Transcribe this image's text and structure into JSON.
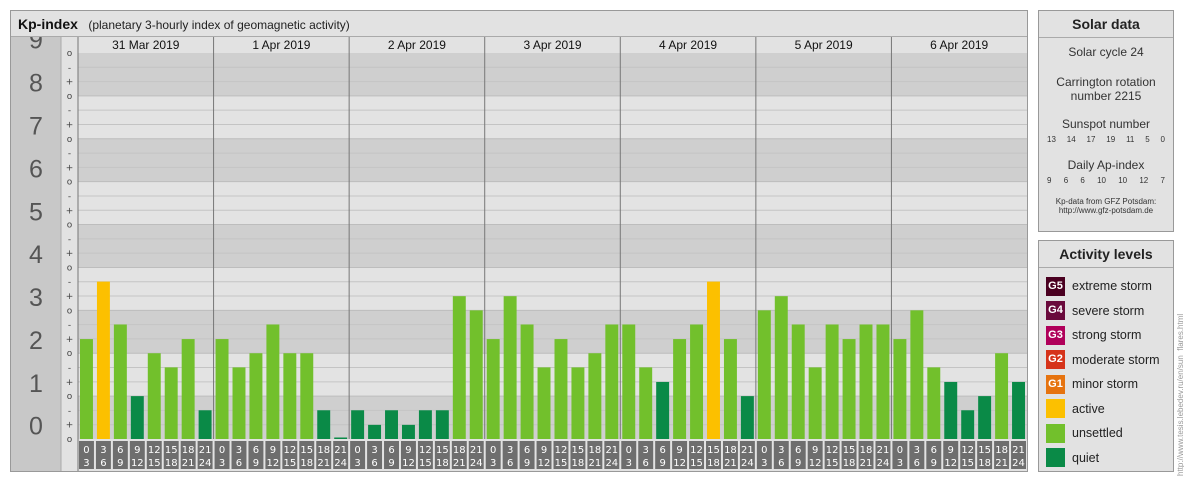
{
  "header": {
    "title": "Kp-index",
    "subtitle": "(planetary 3-hourly index of geomagnetic activity)"
  },
  "chart_data": {
    "type": "bar",
    "days": [
      "31 Mar 2019",
      "1 Apr 2019",
      "2 Apr 2019",
      "3 Apr 2019",
      "4 Apr 2019",
      "5 Apr 2019",
      "6 Apr 2019"
    ],
    "interval_start_labels": [
      "0",
      "3",
      "6",
      "9",
      "12",
      "15",
      "18",
      "21"
    ],
    "interval_end_labels": [
      "3",
      "6",
      "9",
      "12",
      "15",
      "18",
      "21",
      "24"
    ],
    "y_major_labels": [
      "0",
      "1",
      "2",
      "3",
      "4",
      "5",
      "6",
      "7",
      "8",
      "9"
    ],
    "y_minor_labels": [
      "o",
      "+",
      "-"
    ],
    "ylim": [
      0,
      9
    ],
    "grid": true,
    "values": [
      2.33,
      3.67,
      2.67,
      1.0,
      2.0,
      1.67,
      2.33,
      0.67,
      2.33,
      1.67,
      2.0,
      2.67,
      2.0,
      2.0,
      0.67,
      0.0,
      0.67,
      0.33,
      0.67,
      0.33,
      0.67,
      0.67,
      3.33,
      3.0,
      2.33,
      3.33,
      2.67,
      1.67,
      2.33,
      1.67,
      2.0,
      2.67,
      2.67,
      1.67,
      1.33,
      2.33,
      2.67,
      3.67,
      2.33,
      1.0,
      3.0,
      3.33,
      2.67,
      1.67,
      2.67,
      2.33,
      2.67,
      2.67,
      2.33,
      3.0,
      1.67,
      1.33,
      0.67,
      1.0,
      2.0,
      1.33
    ],
    "colors": {
      "quiet": "#0a8a47",
      "unsettled": "#72c02c",
      "active": "#fcc000"
    }
  },
  "solar": {
    "title": "Solar data",
    "cycle": "Solar cycle 24",
    "carrington_line1": "Carrington rotation",
    "carrington_line2": "number 2215",
    "sunspot_title": "Sunspot number",
    "sunspot_values": [
      "13",
      "14",
      "17",
      "19",
      "11",
      "5",
      "0"
    ],
    "ap_title": "Daily Ap-index",
    "ap_values": [
      "9",
      "6",
      "6",
      "10",
      "10",
      "12",
      "7"
    ],
    "source_line1": "Kp-data from GFZ Potsdam:",
    "source_line2": "http://www.gfz-potsdam.de"
  },
  "activity": {
    "title": "Activity levels",
    "levels": [
      {
        "badge": "G5",
        "label": "extreme storm",
        "color": "#4a0020"
      },
      {
        "badge": "G4",
        "label": "severe storm",
        "color": "#6a0a3c"
      },
      {
        "badge": "G3",
        "label": "strong storm",
        "color": "#b0005a"
      },
      {
        "badge": "G2",
        "label": "moderate storm",
        "color": "#d6331a"
      },
      {
        "badge": "G1",
        "label": "minor storm",
        "color": "#e6730f"
      },
      {
        "badge": "",
        "label": "active",
        "color": "#fcc000"
      },
      {
        "badge": "",
        "label": "unsettled",
        "color": "#72c02c"
      },
      {
        "badge": "",
        "label": "quiet",
        "color": "#0a8a47"
      }
    ]
  },
  "credit": "http://www.tesis.lebedev.ru/en/sun_flares.html"
}
